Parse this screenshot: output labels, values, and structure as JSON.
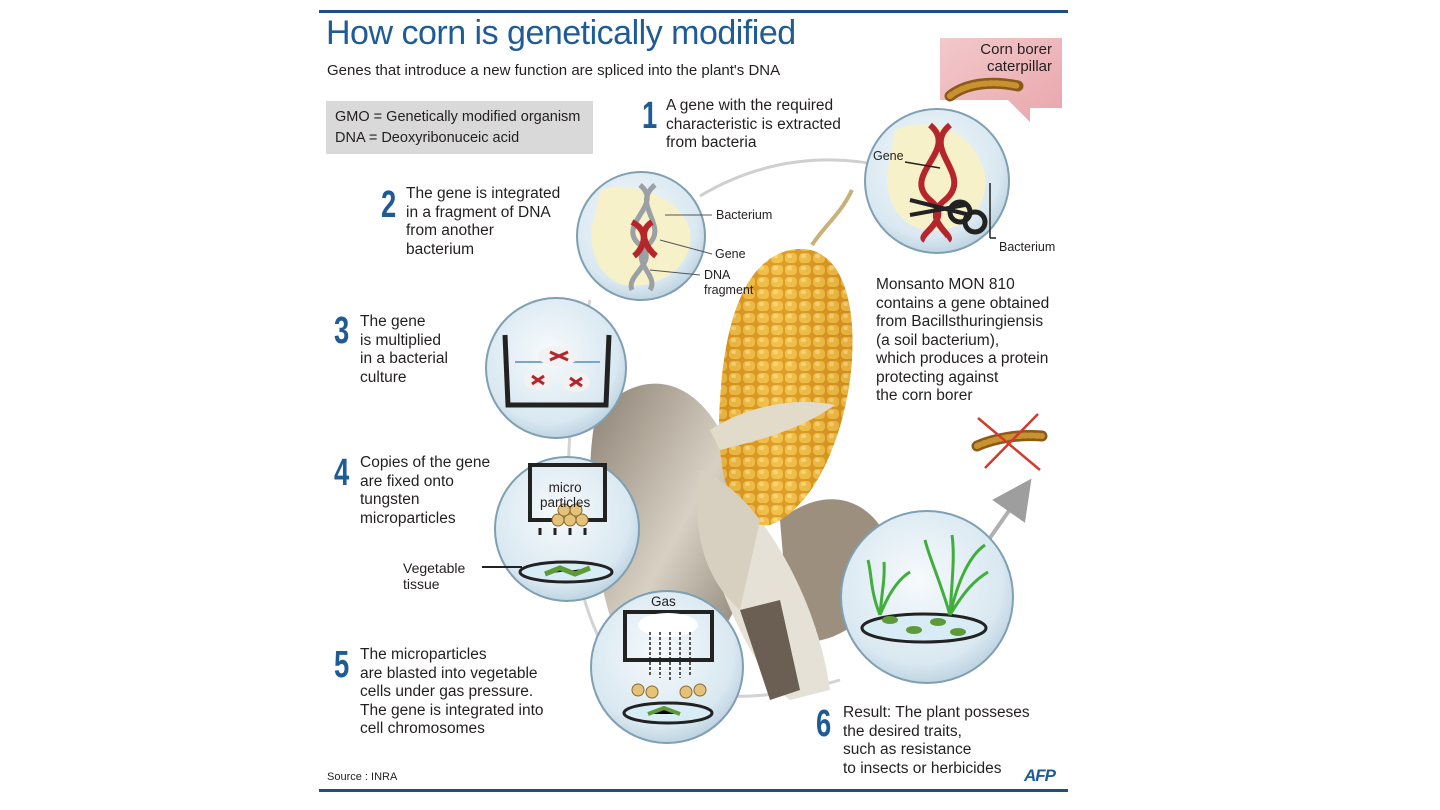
{
  "title": "How corn is genetically modified",
  "subtitle": "Genes that introduce a new function are spliced into the plant's DNA",
  "glossary": [
    "GMO  = Genetically modified organism",
    "DNA = Deoxyribonuceic acid"
  ],
  "corn_borer_label": [
    "Corn borer",
    "caterpillar"
  ],
  "steps": [
    {
      "number": "1",
      "lines": [
        "A gene with the required",
        "characteristic is extracted",
        "from bacteria"
      ]
    },
    {
      "number": "2",
      "lines": [
        "The gene is integrated",
        "in a fragment of DNA",
        "from another",
        "bacterium"
      ]
    },
    {
      "number": "3",
      "lines": [
        "The gene",
        "is multiplied",
        "in a bacterial",
        "culture"
      ]
    },
    {
      "number": "4",
      "lines": [
        "Copies of the gene",
        "are fixed onto",
        "tungsten",
        "microparticles"
      ]
    },
    {
      "number": "5",
      "lines": [
        "The microparticles",
        "are blasted into vegetable",
        "cells under gas pressure.",
        "The gene is integrated into",
        "cell chromosomes"
      ]
    },
    {
      "number": "6",
      "lines": [
        "Result: The plant posseses",
        "the desired traits,",
        "such as resistance",
        "to insects or herbicides"
      ]
    }
  ],
  "labels": {
    "gene_step1": "Gene",
    "bacterium_step1": "Bacterium",
    "bacterium_step2": "Bacterium",
    "gene_step2": "Gene",
    "dna_fragment": [
      "DNA",
      "fragment"
    ],
    "micro_particles": [
      "micro",
      "particles"
    ],
    "vegetable_tissue": [
      "Vegetable",
      "tissue"
    ],
    "gas": "Gas"
  },
  "note": [
    "Monsanto MON 810",
    "contains a gene obtained",
    "from Bacillsthuringiensis",
    "(a soil bacterium),",
    "which produces a protein",
    "protecting against",
    "the corn borer"
  ],
  "source": "Source : INRA",
  "credit": "AFP",
  "colors": {
    "accent": "#1f5c96",
    "dna_red": "#b5262b",
    "corn": "#e3a52a",
    "circle_fill": "#dbe9f2"
  }
}
